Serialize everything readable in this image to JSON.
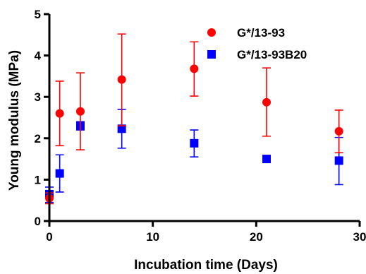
{
  "chart_data": {
    "type": "scatter",
    "xlabel": "Incubation time (Days)",
    "ylabel": "Young modulus (MPa)",
    "xlim": [
      0,
      30
    ],
    "ylim": [
      0,
      5
    ],
    "xticks": [
      0,
      10,
      20,
      30
    ],
    "yticks": [
      0,
      1,
      2,
      3,
      4,
      5
    ],
    "grid": false,
    "legend_position": "top-right",
    "series": [
      {
        "name": "G*/13-93",
        "color": "#ff0000",
        "marker": "circle",
        "x": [
          0,
          1,
          3,
          7,
          14,
          21,
          28
        ],
        "y": [
          0.55,
          2.6,
          2.65,
          3.42,
          3.68,
          2.87,
          2.17
        ],
        "err_low": [
          0.42,
          1.82,
          1.72,
          2.3,
          3.02,
          2.05,
          1.65
        ],
        "err_high": [
          0.68,
          3.38,
          3.58,
          4.52,
          4.33,
          3.7,
          2.68
        ]
      },
      {
        "name": "G*/13-93B20",
        "color": "#0000ff",
        "marker": "square",
        "x": [
          0,
          1,
          3,
          7,
          14,
          21,
          28
        ],
        "y": [
          0.65,
          1.15,
          2.3,
          2.23,
          1.88,
          1.5,
          1.46
        ],
        "err_low": [
          0.45,
          0.7,
          2.2,
          1.76,
          1.55,
          1.45,
          0.88
        ],
        "err_high": [
          0.82,
          1.6,
          2.4,
          2.7,
          2.2,
          1.55,
          2.02
        ]
      }
    ]
  }
}
